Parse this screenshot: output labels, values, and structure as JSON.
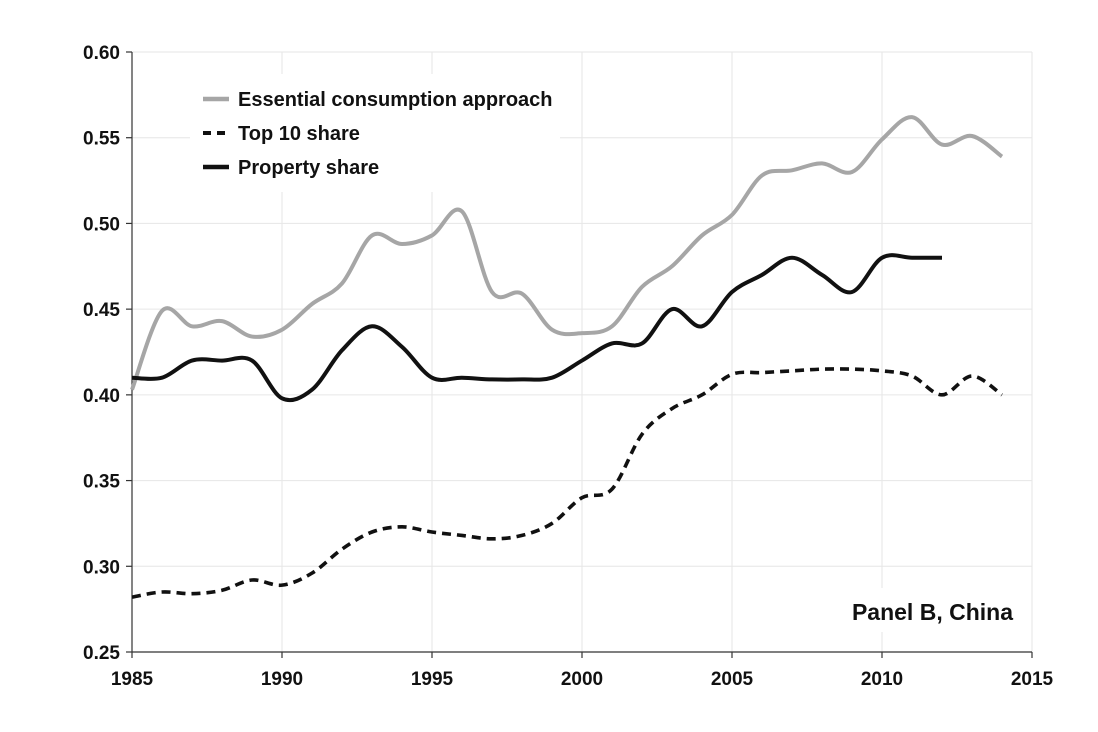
{
  "chart_data": {
    "type": "line",
    "title": "",
    "xlabel": "",
    "ylabel": "",
    "annotation": "Panel B, China",
    "xlim": [
      1985,
      2015
    ],
    "ylim": [
      0.25,
      0.6
    ],
    "xticks": [
      1985,
      1990,
      1995,
      2000,
      2005,
      2010,
      2015
    ],
    "yticks": [
      0.25,
      0.3,
      0.35,
      0.4,
      0.45,
      0.5,
      0.55,
      0.6
    ],
    "xtick_labels": [
      "1985",
      "1990",
      "1995",
      "2000",
      "2005",
      "2010",
      "2015"
    ],
    "ytick_labels": [
      "0.25",
      "0.30",
      "0.35",
      "0.40",
      "0.45",
      "0.50",
      "0.55",
      "0.60"
    ],
    "grid": true,
    "legend_position": "top-left",
    "series": [
      {
        "name": "Essential consumption approach",
        "color": "#a6a6a6",
        "style": "solid",
        "x": [
          1985,
          1986,
          1987,
          1988,
          1989,
          1990,
          1991,
          1992,
          1993,
          1994,
          1995,
          1996,
          1997,
          1998,
          1999,
          2000,
          2001,
          2002,
          2003,
          2004,
          2005,
          2006,
          2007,
          2008,
          2009,
          2010,
          2011,
          2012,
          2013,
          2014
        ],
        "values": [
          0.403,
          0.449,
          0.44,
          0.443,
          0.434,
          0.438,
          0.453,
          0.465,
          0.493,
          0.488,
          0.493,
          0.507,
          0.46,
          0.459,
          0.438,
          0.436,
          0.44,
          0.463,
          0.475,
          0.493,
          0.505,
          0.528,
          0.531,
          0.535,
          0.53,
          0.549,
          0.562,
          0.546,
          0.551,
          0.539
        ]
      },
      {
        "name": "Top 10 share",
        "color": "#111111",
        "style": "dashed",
        "x": [
          1985,
          1986,
          1987,
          1988,
          1989,
          1990,
          1991,
          1992,
          1993,
          1994,
          1995,
          1996,
          1997,
          1998,
          1999,
          2000,
          2001,
          2002,
          2003,
          2004,
          2005,
          2006,
          2007,
          2008,
          2009,
          2010,
          2011,
          2012,
          2013,
          2014
        ],
        "values": [
          0.282,
          0.285,
          0.284,
          0.286,
          0.292,
          0.289,
          0.296,
          0.31,
          0.32,
          0.323,
          0.32,
          0.318,
          0.316,
          0.318,
          0.325,
          0.34,
          0.345,
          0.377,
          0.392,
          0.4,
          0.412,
          0.413,
          0.414,
          0.415,
          0.415,
          0.414,
          0.411,
          0.4,
          0.411,
          0.4
        ]
      },
      {
        "name": "Property share",
        "color": "#111111",
        "style": "solid",
        "x": [
          1985,
          1986,
          1987,
          1988,
          1989,
          1990,
          1991,
          1992,
          1993,
          1994,
          1995,
          1996,
          1997,
          1998,
          1999,
          2000,
          2001,
          2002,
          2003,
          2004,
          2005,
          2006,
          2007,
          2008,
          2009,
          2010,
          2011,
          2012
        ],
        "values": [
          0.41,
          0.41,
          0.42,
          0.42,
          0.42,
          0.398,
          0.403,
          0.426,
          0.44,
          0.428,
          0.41,
          0.41,
          0.409,
          0.409,
          0.41,
          0.42,
          0.43,
          0.43,
          0.45,
          0.44,
          0.46,
          0.47,
          0.48,
          0.47,
          0.46,
          0.48,
          0.48,
          0.48
        ]
      }
    ]
  }
}
